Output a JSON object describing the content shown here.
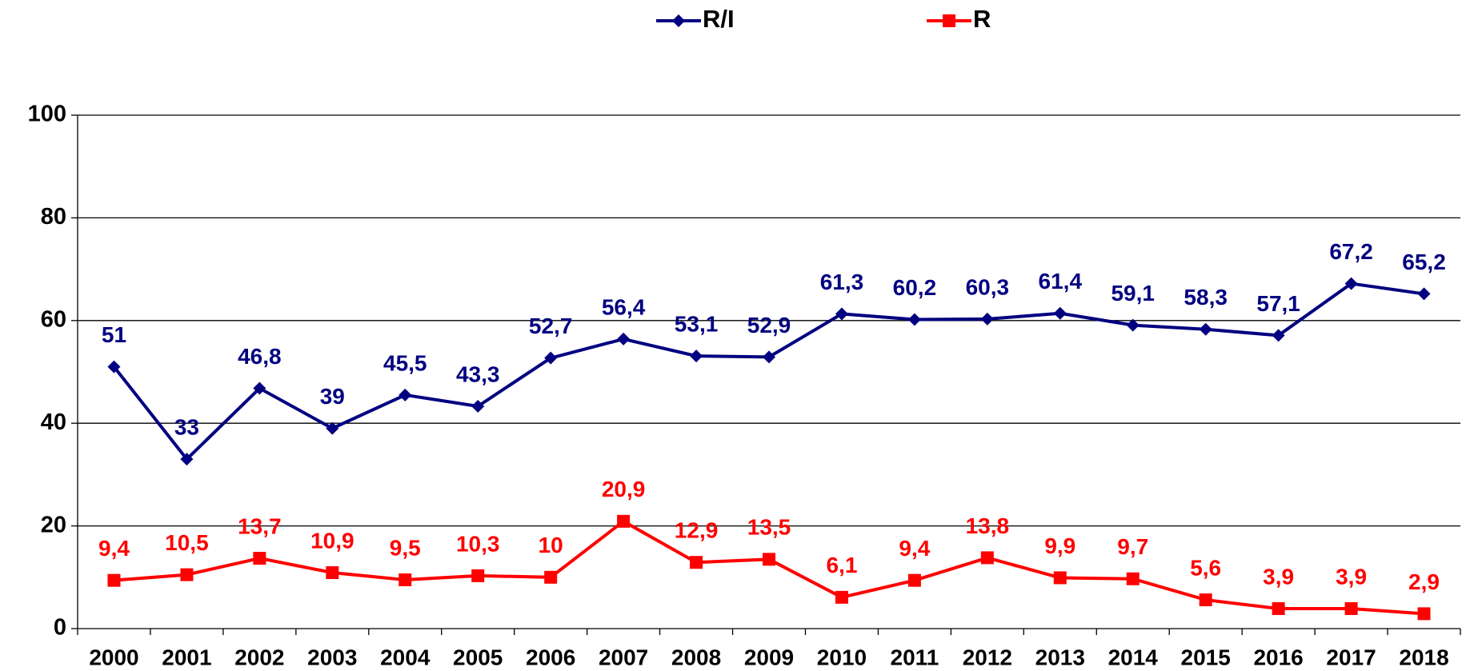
{
  "chart_data": {
    "type": "line",
    "categories": [
      "2000",
      "2001",
      "2002",
      "2003",
      "2004",
      "2005",
      "2006",
      "2007",
      "2008",
      "2009",
      "2010",
      "2011",
      "2012",
      "2013",
      "2014",
      "2015",
      "2016",
      "2017",
      "2018"
    ],
    "series": [
      {
        "name": "R/I",
        "color": "#000080",
        "marker": "diamond",
        "values": [
          51,
          33,
          46.8,
          39,
          45.5,
          43.3,
          52.7,
          56.4,
          53.1,
          52.9,
          61.3,
          60.2,
          60.3,
          61.4,
          59.1,
          58.3,
          57.1,
          67.2,
          65.2
        ],
        "value_labels": [
          "51",
          "33",
          "46,8",
          "39",
          "45,5",
          "43,3",
          "52,7",
          "56,4",
          "53,1",
          "52,9",
          "61,3",
          "60,2",
          "60,3",
          "61,4",
          "59,1",
          "58,3",
          "57,1",
          "67,2",
          "65,2"
        ]
      },
      {
        "name": "R",
        "color": "#ff0000",
        "marker": "square",
        "values": [
          9.4,
          10.5,
          13.7,
          10.9,
          9.5,
          10.3,
          10,
          20.9,
          12.9,
          13.5,
          6.1,
          9.4,
          13.8,
          9.9,
          9.7,
          5.6,
          3.9,
          3.9,
          2.9
        ],
        "value_labels": [
          "9,4",
          "10,5",
          "13,7",
          "10,9",
          "9,5",
          "10,3",
          "10",
          "20,9",
          "12,9",
          "13,5",
          "6,1",
          "9,4",
          "13,8",
          "9,9",
          "9,7",
          "5,6",
          "3,9",
          "3,9",
          "2,9"
        ]
      }
    ],
    "ylim": [
      0,
      100
    ],
    "yticks": [
      0,
      20,
      40,
      60,
      80,
      100
    ],
    "grid": true,
    "legend": "top"
  }
}
